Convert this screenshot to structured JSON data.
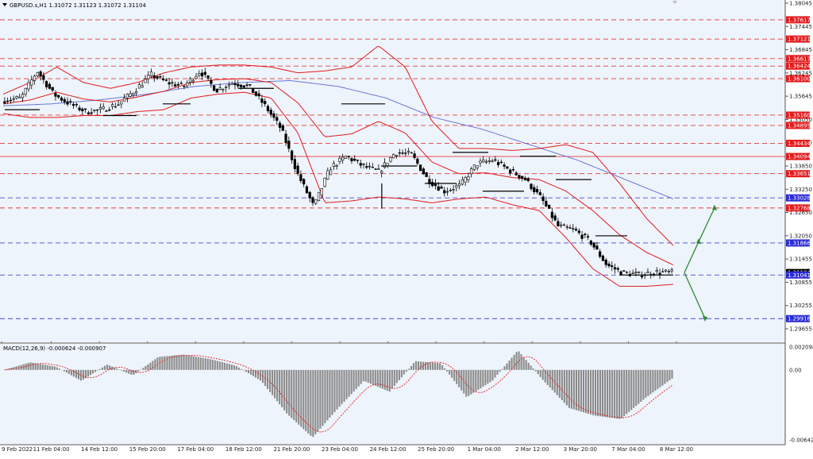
{
  "colors": {
    "background": "#ffffff",
    "plot_bg": "#eef4fb",
    "grid": "#c8d2de",
    "candles": "#000000",
    "bollinger": "#e31a1c",
    "ma": "#5b6bd6",
    "red_level": "#e31a1c",
    "blue_level": "#2a2ad6",
    "arrow": "#2e8b2e",
    "macd_hist": "#8a8a8a",
    "macd_signal": "#e31a1c",
    "axis_text": "#222222"
  },
  "main_chart": {
    "header": "GBPUSD.s,H1  1.31072 1.31123 1.31072 1.31104",
    "price_axis_labels": [
      "1.38045",
      "1.37445",
      "1.36845",
      "1.36245",
      "1.35645",
      "1.35050",
      "1.34450",
      "1.33850",
      "1.33250",
      "1.32650",
      "1.32050",
      "1.31455",
      "1.30855",
      "1.30255",
      "1.29655"
    ],
    "levels": [
      {
        "label": "1.37617",
        "style": "red"
      },
      {
        "label": "1.37121",
        "style": "red"
      },
      {
        "label": "1.36617",
        "style": "red"
      },
      {
        "label": "1.36424",
        "style": "red"
      },
      {
        "label": "1.36100",
        "style": "red"
      },
      {
        "label": "1.35160",
        "style": "red"
      },
      {
        "label": "1.34895",
        "style": "red"
      },
      {
        "label": "1.34434",
        "style": "red"
      },
      {
        "label": "1.34094",
        "style": "red_solid"
      },
      {
        "label": "1.33651",
        "style": "red"
      },
      {
        "label": "1.33028",
        "style": "blue"
      },
      {
        "label": "1.32768",
        "style": "red"
      },
      {
        "label": "1.31866",
        "style": "blue"
      },
      {
        "label": "1.31104",
        "style": "black"
      },
      {
        "label": "1.31041",
        "style": "blue"
      },
      {
        "label": "1.29916",
        "style": "blue"
      }
    ]
  },
  "macd": {
    "header": "MACD(12,26,9) -0.000624 -0.000907",
    "axis_labels": [
      "0.002098",
      "0.00",
      "-0.006421"
    ]
  },
  "time_axis": [
    "9 Feb 2022",
    "11 Feb 04:00",
    "14 Feb 12:00",
    "15 Feb 20:00",
    "17 Feb 04:00",
    "18 Feb 12:00",
    "21 Feb 20:00",
    "23 Feb 04:00",
    "24 Feb 12:00",
    "25 Feb 20:00",
    "1 Mar 04:00",
    "2 Mar 12:00",
    "3 Mar 20:00",
    "7 Mar 04:00",
    "8 Mar 12:00"
  ],
  "chart_data": {
    "type": "candlestick",
    "title": "GBPUSD.s,H1",
    "ohlc_last": {
      "open": 1.31072,
      "high": 1.31123,
      "low": 1.31072,
      "close": 1.31104
    },
    "ylim": [
      1.295,
      1.382
    ],
    "close_anchors": [
      {
        "x": "9 Feb 2022",
        "close": 1.3555
      },
      {
        "x": "10 Feb",
        "close": 1.356
      },
      {
        "x": "10 Feb 20:00",
        "close": 1.363
      },
      {
        "x": "11 Feb 04:00",
        "close": 1.357
      },
      {
        "x": "11 Feb 16:00",
        "close": 1.3545
      },
      {
        "x": "14 Feb 12:00",
        "close": 1.3525
      },
      {
        "x": "15 Feb 04:00",
        "close": 1.353
      },
      {
        "x": "15 Feb 20:00",
        "close": 1.3545
      },
      {
        "x": "16 Feb 12:00",
        "close": 1.358
      },
      {
        "x": "17 Feb 04:00",
        "close": 1.362
      },
      {
        "x": "17 Feb 20:00",
        "close": 1.36
      },
      {
        "x": "18 Feb 12:00",
        "close": 1.359
      },
      {
        "x": "21 Feb 04:00",
        "close": 1.363
      },
      {
        "x": "21 Feb 20:00",
        "close": 1.358
      },
      {
        "x": "22 Feb 12:00",
        "close": 1.36
      },
      {
        "x": "23 Feb 04:00",
        "close": 1.359
      },
      {
        "x": "23 Feb 20:00",
        "close": 1.354
      },
      {
        "x": "24 Feb 04:00",
        "close": 1.348
      },
      {
        "x": "24 Feb 12:00",
        "close": 1.3365
      },
      {
        "x": "24 Feb 16:00",
        "close": 1.328
      },
      {
        "x": "24 Feb 20:00",
        "close": 1.338
      },
      {
        "x": "25 Feb 08:00",
        "close": 1.341
      },
      {
        "x": "25 Feb 20:00",
        "close": 1.3385
      },
      {
        "x": "28 Feb 04:00",
        "close": 1.337
      },
      {
        "x": "28 Feb 20:00",
        "close": 1.342
      },
      {
        "x": "1 Mar 04:00",
        "close": 1.3415
      },
      {
        "x": "1 Mar 12:00",
        "close": 1.335
      },
      {
        "x": "1 Mar 20:00",
        "close": 1.332
      },
      {
        "x": "2 Mar 04:00",
        "close": 1.3335
      },
      {
        "x": "2 Mar 12:00",
        "close": 1.339
      },
      {
        "x": "2 Mar 20:00",
        "close": 1.34
      },
      {
        "x": "3 Mar 04:00",
        "close": 1.3375
      },
      {
        "x": "3 Mar 20:00",
        "close": 1.335
      },
      {
        "x": "4 Mar 04:00",
        "close": 1.33
      },
      {
        "x": "4 Mar 12:00",
        "close": 1.323
      },
      {
        "x": "4 Mar 20:00",
        "close": 1.322
      },
      {
        "x": "7 Mar 04:00",
        "close": 1.319
      },
      {
        "x": "7 Mar 12:00",
        "close": 1.313
      },
      {
        "x": "7 Mar 20:00",
        "close": 1.311
      },
      {
        "x": "8 Mar 04:00",
        "close": 1.3105
      },
      {
        "x": "8 Mar 12:00",
        "close": 1.3112
      },
      {
        "x": "8 Mar 20:00",
        "close": 1.311
      }
    ],
    "bollinger_upper_anchors": [
      1.357,
      1.36,
      1.364,
      1.36,
      1.3585,
      1.36,
      1.3625,
      1.364,
      1.3645,
      1.3645,
      1.364,
      1.3625,
      1.363,
      1.364,
      1.3695,
      1.364,
      1.35,
      1.343,
      1.343,
      1.3425,
      1.343,
      1.344,
      1.342,
      1.334,
      1.325,
      1.318
    ],
    "bollinger_lower_anchors": [
      1.352,
      1.351,
      1.351,
      1.3515,
      1.3515,
      1.3525,
      1.353,
      1.356,
      1.357,
      1.3575,
      1.356,
      1.347,
      1.329,
      1.3295,
      1.3305,
      1.33,
      1.329,
      1.33,
      1.3305,
      1.3285,
      1.327,
      1.32,
      1.312,
      1.3075,
      1.3075,
      1.308
    ],
    "ma_anchors": [
      1.354,
      1.3545,
      1.3555,
      1.357,
      1.359,
      1.36,
      1.3605,
      1.359,
      1.356,
      1.351,
      1.348,
      1.344,
      1.34,
      1.335,
      1.33
    ],
    "projection": {
      "from": 1.311,
      "up_targets": [
        1.319,
        1.3277
      ],
      "down_target": 1.2992
    },
    "macd_anchors": [
      0.0,
      0.0007,
      0.0003,
      -0.001,
      0.0005,
      -0.0005,
      0.0012,
      0.0014,
      0.001,
      0.0004,
      -0.001,
      -0.004,
      -0.0062,
      -0.0035,
      -0.001,
      -0.002,
      0.0008,
      0.0006,
      -0.0025,
      -0.001,
      0.0018,
      -0.001,
      -0.0035,
      -0.0042,
      -0.0045,
      -0.0025,
      -0.0008
    ]
  }
}
